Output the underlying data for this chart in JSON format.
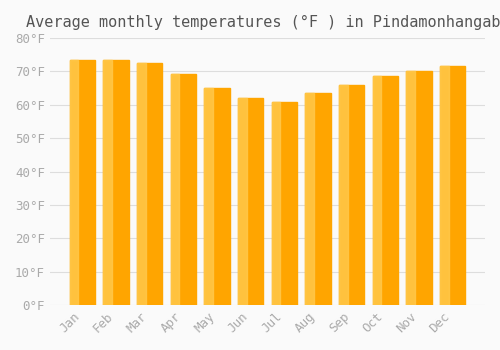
{
  "title": "Average monthly temperatures (°F ) in Pindamonhangaba",
  "months": [
    "Jan",
    "Feb",
    "Mar",
    "Apr",
    "May",
    "Jun",
    "Jul",
    "Aug",
    "Sep",
    "Oct",
    "Nov",
    "Dec"
  ],
  "values": [
    73.4,
    73.4,
    72.5,
    69.1,
    65.0,
    62.1,
    60.8,
    63.5,
    66.0,
    68.5,
    70.2,
    71.6
  ],
  "bar_color_face": "#FFA500",
  "bar_color_edge": "#FFC84A",
  "ylim": [
    0,
    80
  ],
  "yticks": [
    0,
    10,
    20,
    30,
    40,
    50,
    60,
    70,
    80
  ],
  "ytick_labels": [
    "0°F",
    "10°F",
    "20°F",
    "30°F",
    "40°F",
    "50°F",
    "60°F",
    "70°F",
    "80°F"
  ],
  "background_color": "#FAFAFA",
  "grid_color": "#DDDDDD",
  "title_fontsize": 11,
  "tick_fontsize": 9,
  "title_color": "#555555",
  "tick_color": "#AAAAAA"
}
